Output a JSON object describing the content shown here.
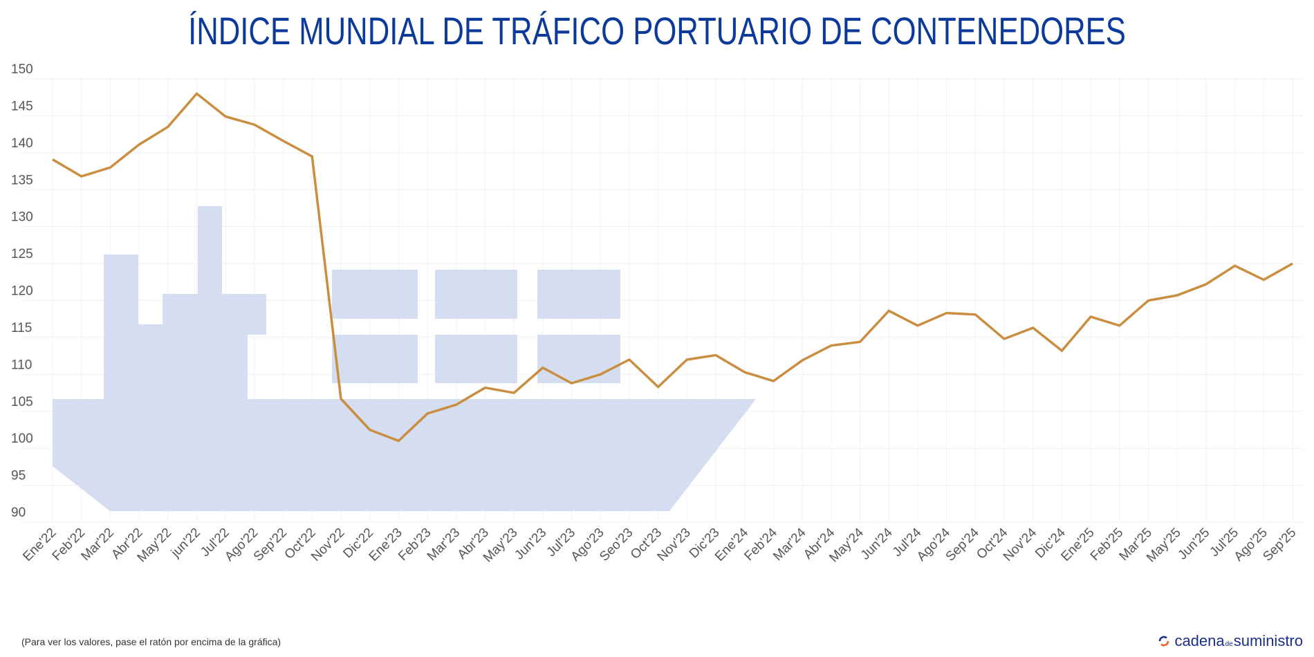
{
  "chart_data": {
    "type": "line",
    "title": "ÍNDICE MUNDIAL DE TRÁFICO PORTUARIO DE CONTENEDORES",
    "xlabel": "",
    "ylabel": "",
    "ylim": [
      90,
      150
    ],
    "yticks": [
      150,
      145,
      140,
      135,
      130,
      125,
      120,
      115,
      110,
      105,
      100,
      95,
      90
    ],
    "grid": true,
    "line_color": "#c98e3f",
    "background_illustration": "container-ship",
    "illustration_color": "#d5ddf0",
    "categories": [
      "Ene'22",
      "Feb'22",
      "Mar'22",
      "Abr'22",
      "May'22",
      "jun'22",
      "Jul'22",
      "Ago'22",
      "Sep'22",
      "Oct'22",
      "Nov'22",
      "Dic'22",
      "Ene'23",
      "Feb'23",
      "Mar'23",
      "Abr'23",
      "May'23",
      "Jun'23",
      "Jul'23",
      "Ago'23",
      "Seo'23",
      "Oct'23",
      "Nov'23",
      "Dic'23",
      "Ene'24",
      "Feb'24",
      "Mar'24",
      "Abr'24",
      "May'24",
      "Jun'24",
      "Jul'24",
      "Ago'24",
      "Sep'24",
      "Oct'24",
      "Nov'24",
      "Dic'24",
      "Ene'25",
      "Feb'25",
      "Mar'25",
      "May'25",
      "Jun'25",
      "Jul'25",
      "Ago'25",
      "Sep'25"
    ],
    "values": [
      139.1,
      136.8,
      138.0,
      141.1,
      143.5,
      148.0,
      144.9,
      143.8,
      141.6,
      139.5,
      106.7,
      102.5,
      101.0,
      104.7,
      105.9,
      108.2,
      107.5,
      110.9,
      108.8,
      110.0,
      112.0,
      108.3,
      112.0,
      112.6,
      110.3,
      109.1,
      111.9,
      113.9,
      114.4,
      118.6,
      116.6,
      118.3,
      118.1,
      114.8,
      116.3,
      113.2,
      117.8,
      116.6,
      120.0,
      120.7,
      122.2,
      124.7,
      122.8,
      125.0
    ]
  },
  "footnote": "(Para ver los valores, pase el ratón por encima de la gráfica)",
  "logo": {
    "text_main": "cadena",
    "text_de": "de",
    "text_end": "suministro"
  }
}
